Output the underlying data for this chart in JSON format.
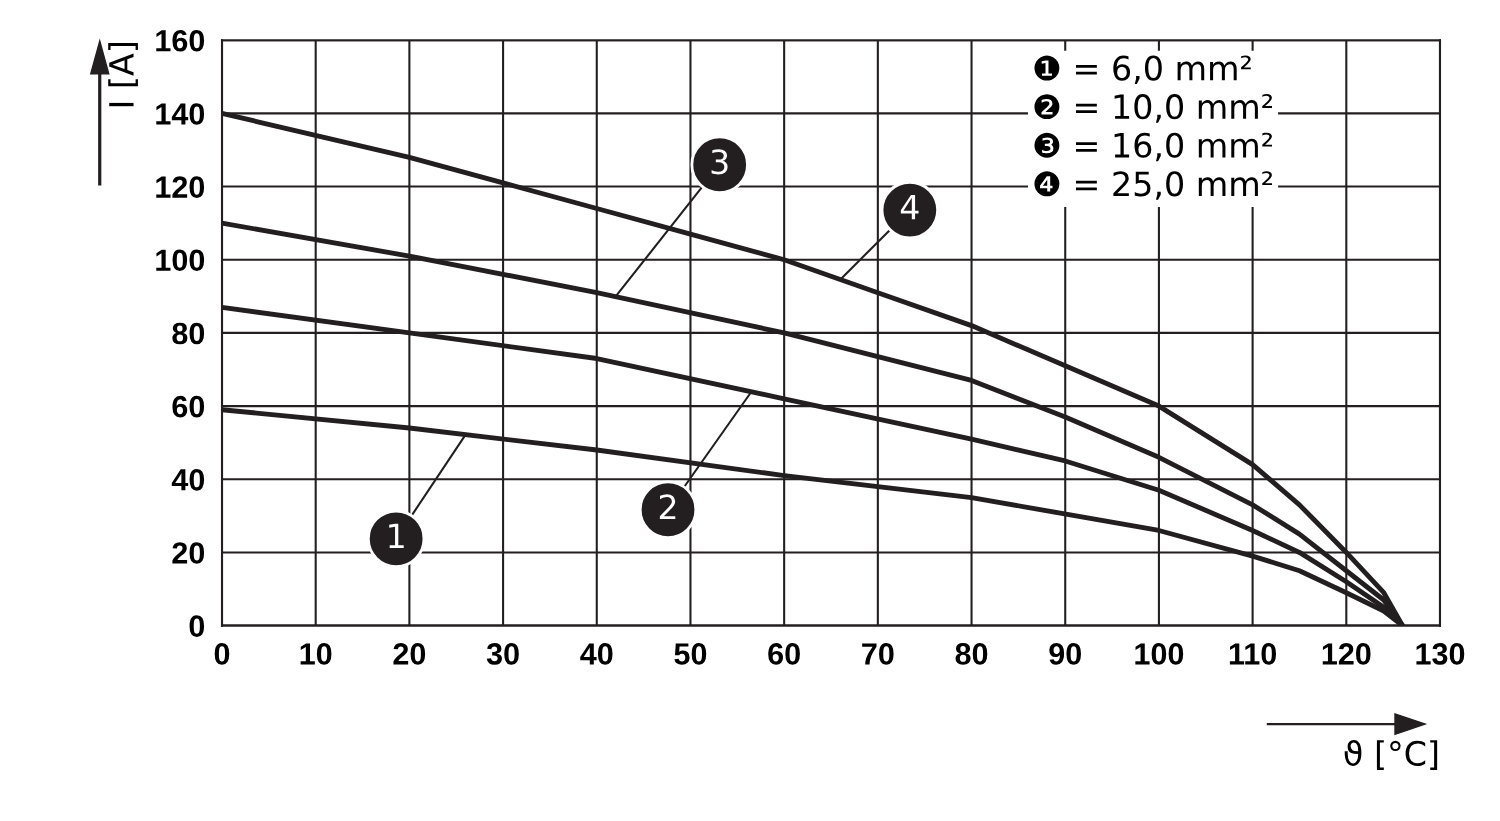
{
  "chart_data": {
    "type": "line",
    "xlabel": "ϑ [°C]",
    "ylabel": "I [A]",
    "xlim": [
      0,
      130
    ],
    "xticks": [
      0,
      10,
      20,
      30,
      40,
      50,
      60,
      70,
      80,
      90,
      100,
      110,
      120,
      130
    ],
    "ylim": [
      0,
      160
    ],
    "yticks": [
      0,
      20,
      40,
      60,
      80,
      100,
      120,
      140,
      160
    ],
    "grid": true,
    "marker": "none",
    "line_style": "solid",
    "series": [
      {
        "name": "1",
        "color": "#231f20",
        "x": [
          0,
          20,
          40,
          60,
          80,
          100,
          110,
          115,
          120,
          124,
          126
        ],
        "values": [
          59,
          54,
          48,
          41,
          35,
          26,
          19,
          15,
          9,
          4,
          0
        ]
      },
      {
        "name": "2",
        "color": "#231f20",
        "x": [
          0,
          20,
          40,
          60,
          80,
          90,
          100,
          110,
          115,
          120,
          124,
          126
        ],
        "values": [
          87,
          80,
          73,
          62,
          51,
          45,
          37,
          26,
          20,
          12,
          5,
          0
        ]
      },
      {
        "name": "3",
        "color": "#231f20",
        "x": [
          0,
          20,
          40,
          60,
          80,
          90,
          100,
          110,
          115,
          120,
          124,
          126
        ],
        "values": [
          110,
          101,
          91,
          80,
          67,
          57,
          46,
          33,
          25,
          15,
          7,
          0
        ]
      },
      {
        "name": "4",
        "color": "#231f20",
        "x": [
          0,
          20,
          30,
          40,
          50,
          60,
          70,
          80,
          90,
          100,
          110,
          115,
          120,
          124,
          126
        ],
        "values": [
          140,
          128,
          121,
          114,
          107,
          100,
          91,
          82,
          71,
          60,
          44,
          33,
          20,
          9,
          0
        ]
      }
    ],
    "annotations": [
      "❶ = 6,0 mm²",
      "❷ = 10,0 mm²",
      "❸ = 16,0 mm²",
      "❹ = 25,0 mm²"
    ]
  }
}
